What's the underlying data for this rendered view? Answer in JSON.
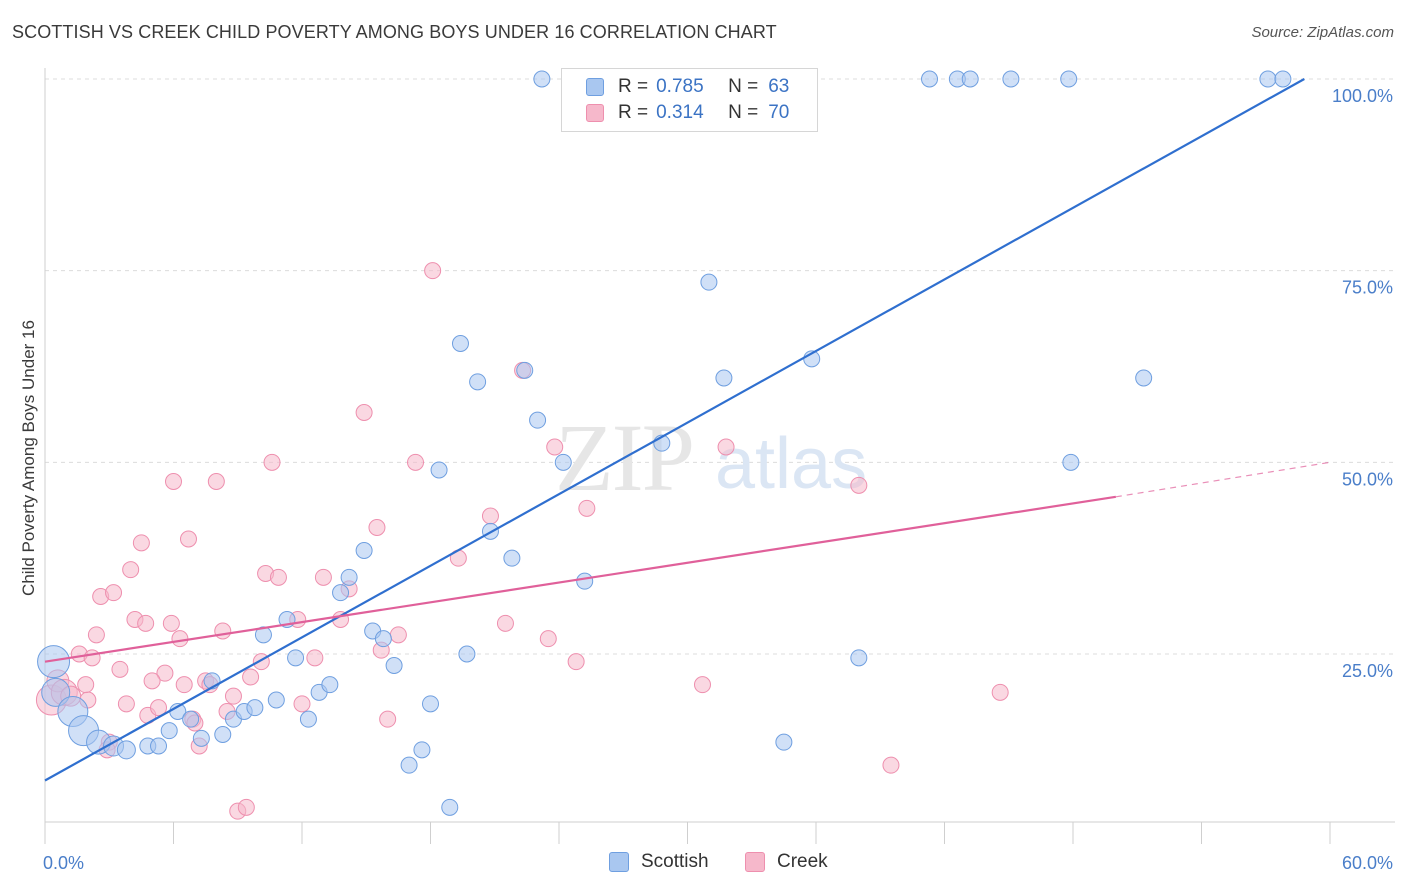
{
  "title": "SCOTTISH VS CREEK CHILD POVERTY AMONG BOYS UNDER 16 CORRELATION CHART",
  "source": "Source: ZipAtlas.com",
  "legend": {
    "rows": [
      {
        "r_label": "R =",
        "r_value": "0.785",
        "n_label": "N =",
        "n_value": "63"
      },
      {
        "r_label": "R =",
        "r_value": "0.314",
        "n_label": "N =",
        "n_value": "70"
      }
    ]
  },
  "bottom_legend": {
    "series1": "Scottish",
    "series2": "Creek"
  },
  "colors": {
    "scottish_fill": "#a9c7f0",
    "scottish_stroke": "#6f9fe0",
    "scottish_line": "#2f6fcf",
    "creek_fill": "#f6b8cb",
    "creek_stroke": "#ee8fae",
    "creek_line": "#e0609a",
    "accent_text": "#4a7ec9"
  },
  "chart_data": {
    "type": "scatter",
    "title": "SCOTTISH VS CREEK CHILD POVERTY AMONG BOYS UNDER 16 CORRELATION CHART",
    "xlabel": "",
    "ylabel": "Child Poverty Among Boys Under 16",
    "xlim": [
      0,
      60
    ],
    "ylim": [
      0,
      105
    ],
    "x_tick_labels": [
      "0.0%",
      "60.0%"
    ],
    "y_tick_labels": [
      "25.0%",
      "50.0%",
      "75.0%",
      "100.0%"
    ],
    "y_ticks": [
      25,
      50,
      75,
      100
    ],
    "grid": true,
    "legend_position": "top-center",
    "series": [
      {
        "name": "Scottish",
        "r": 0.785,
        "n": 63,
        "trend": {
          "x": [
            0,
            58.8
          ],
          "y": [
            8.5,
            100
          ]
        },
        "points": [
          {
            "x": 0.4,
            "y": 24,
            "s": 16
          },
          {
            "x": 0.5,
            "y": 20,
            "s": 14
          },
          {
            "x": 1.3,
            "y": 17.5,
            "s": 15
          },
          {
            "x": 1.8,
            "y": 15,
            "s": 15
          },
          {
            "x": 2.5,
            "y": 13.5,
            "s": 12
          },
          {
            "x": 3.2,
            "y": 13,
            "s": 10
          },
          {
            "x": 3.8,
            "y": 12.5,
            "s": 9
          },
          {
            "x": 4.8,
            "y": 13,
            "s": 8
          },
          {
            "x": 5.3,
            "y": 13,
            "s": 8
          },
          {
            "x": 5.8,
            "y": 15,
            "s": 8
          },
          {
            "x": 6.2,
            "y": 17.5,
            "s": 8
          },
          {
            "x": 6.8,
            "y": 16.5,
            "s": 8
          },
          {
            "x": 7.3,
            "y": 14,
            "s": 8
          },
          {
            "x": 7.8,
            "y": 21.5,
            "s": 8
          },
          {
            "x": 8.3,
            "y": 14.5,
            "s": 8
          },
          {
            "x": 8.8,
            "y": 16.5,
            "s": 8
          },
          {
            "x": 9.3,
            "y": 17.5,
            "s": 8
          },
          {
            "x": 9.8,
            "y": 18,
            "s": 8
          },
          {
            "x": 10.2,
            "y": 27.5,
            "s": 8
          },
          {
            "x": 10.8,
            "y": 19,
            "s": 8
          },
          {
            "x": 11.3,
            "y": 29.5,
            "s": 8
          },
          {
            "x": 11.7,
            "y": 24.5,
            "s": 8
          },
          {
            "x": 12.3,
            "y": 16.5,
            "s": 8
          },
          {
            "x": 12.8,
            "y": 20,
            "s": 8
          },
          {
            "x": 13.3,
            "y": 21,
            "s": 8
          },
          {
            "x": 13.8,
            "y": 33,
            "s": 8
          },
          {
            "x": 14.2,
            "y": 35,
            "s": 8
          },
          {
            "x": 14.9,
            "y": 38.5,
            "s": 8
          },
          {
            "x": 15.3,
            "y": 28,
            "s": 8
          },
          {
            "x": 15.8,
            "y": 27,
            "s": 8
          },
          {
            "x": 16.3,
            "y": 23.5,
            "s": 8
          },
          {
            "x": 17.0,
            "y": 10.5,
            "s": 8
          },
          {
            "x": 17.6,
            "y": 12.5,
            "s": 8
          },
          {
            "x": 18.0,
            "y": 18.5,
            "s": 8
          },
          {
            "x": 18.4,
            "y": 49,
            "s": 8
          },
          {
            "x": 18.9,
            "y": 5,
            "s": 8
          },
          {
            "x": 19.4,
            "y": 65.5,
            "s": 8
          },
          {
            "x": 19.7,
            "y": 25,
            "s": 8
          },
          {
            "x": 20.2,
            "y": 60.5,
            "s": 8
          },
          {
            "x": 20.8,
            "y": 41,
            "s": 8
          },
          {
            "x": 21.8,
            "y": 37.5,
            "s": 8
          },
          {
            "x": 22.4,
            "y": 62,
            "s": 8
          },
          {
            "x": 23.0,
            "y": 55.5,
            "s": 8
          },
          {
            "x": 23.2,
            "y": 100,
            "s": 8
          },
          {
            "x": 24.2,
            "y": 50,
            "s": 8
          },
          {
            "x": 25.2,
            "y": 34.5,
            "s": 8
          },
          {
            "x": 28.8,
            "y": 52.5,
            "s": 8
          },
          {
            "x": 31.0,
            "y": 73.5,
            "s": 8
          },
          {
            "x": 31.7,
            "y": 61,
            "s": 8
          },
          {
            "x": 34.5,
            "y": 13.5,
            "s": 8
          },
          {
            "x": 35.8,
            "y": 63.5,
            "s": 8
          },
          {
            "x": 38.0,
            "y": 24.5,
            "s": 8
          },
          {
            "x": 41.3,
            "y": 100,
            "s": 8
          },
          {
            "x": 42.6,
            "y": 100,
            "s": 8
          },
          {
            "x": 43.2,
            "y": 100,
            "s": 8
          },
          {
            "x": 45.1,
            "y": 100,
            "s": 8
          },
          {
            "x": 47.8,
            "y": 100,
            "s": 8
          },
          {
            "x": 47.9,
            "y": 50,
            "s": 8
          },
          {
            "x": 51.3,
            "y": 61,
            "s": 8
          },
          {
            "x": 57.1,
            "y": 100,
            "s": 8
          },
          {
            "x": 57.8,
            "y": 100,
            "s": 8
          },
          {
            "x": 25.5,
            "y": 100,
            "s": 8
          },
          {
            "x": 27.3,
            "y": 100,
            "s": 8
          }
        ]
      },
      {
        "name": "Creek",
        "r": 0.314,
        "n": 70,
        "trend": {
          "x": [
            0,
            50
          ],
          "y": [
            24,
            45.5
          ],
          "dashed_to": {
            "x": 60,
            "y": 50
          }
        },
        "points": [
          {
            "x": 0.3,
            "y": 19,
            "s": 15
          },
          {
            "x": 0.6,
            "y": 21.5,
            "s": 11
          },
          {
            "x": 0.9,
            "y": 20,
            "s": 13
          },
          {
            "x": 1.2,
            "y": 19.5,
            "s": 10
          },
          {
            "x": 1.6,
            "y": 25,
            "s": 8
          },
          {
            "x": 2.0,
            "y": 19,
            "s": 8
          },
          {
            "x": 2.2,
            "y": 24.5,
            "s": 8
          },
          {
            "x": 2.4,
            "y": 27.5,
            "s": 8
          },
          {
            "x": 2.6,
            "y": 32.5,
            "s": 8
          },
          {
            "x": 3.0,
            "y": 13.5,
            "s": 8
          },
          {
            "x": 3.2,
            "y": 33,
            "s": 8
          },
          {
            "x": 3.5,
            "y": 23,
            "s": 8
          },
          {
            "x": 3.8,
            "y": 18.5,
            "s": 8
          },
          {
            "x": 4.0,
            "y": 36,
            "s": 8
          },
          {
            "x": 4.2,
            "y": 29.5,
            "s": 8
          },
          {
            "x": 4.5,
            "y": 39.5,
            "s": 8
          },
          {
            "x": 4.7,
            "y": 29,
            "s": 8
          },
          {
            "x": 4.8,
            "y": 17,
            "s": 8
          },
          {
            "x": 5.3,
            "y": 18,
            "s": 8
          },
          {
            "x": 5.6,
            "y": 22.5,
            "s": 8
          },
          {
            "x": 5.9,
            "y": 29,
            "s": 8
          },
          {
            "x": 6.0,
            "y": 47.5,
            "s": 8
          },
          {
            "x": 6.3,
            "y": 27,
            "s": 8
          },
          {
            "x": 6.5,
            "y": 21,
            "s": 8
          },
          {
            "x": 6.7,
            "y": 40,
            "s": 8
          },
          {
            "x": 6.9,
            "y": 16.5,
            "s": 8
          },
          {
            "x": 7.2,
            "y": 13,
            "s": 8
          },
          {
            "x": 7.5,
            "y": 21.5,
            "s": 8
          },
          {
            "x": 7.7,
            "y": 21,
            "s": 8
          },
          {
            "x": 8.0,
            "y": 47.5,
            "s": 8
          },
          {
            "x": 8.3,
            "y": 28,
            "s": 8
          },
          {
            "x": 8.5,
            "y": 17.5,
            "s": 8
          },
          {
            "x": 9.0,
            "y": 4.5,
            "s": 8
          },
          {
            "x": 9.4,
            "y": 5,
            "s": 8
          },
          {
            "x": 10.1,
            "y": 24,
            "s": 8
          },
          {
            "x": 10.3,
            "y": 35.5,
            "s": 8
          },
          {
            "x": 10.6,
            "y": 50,
            "s": 8
          },
          {
            "x": 10.9,
            "y": 35,
            "s": 8
          },
          {
            "x": 11.8,
            "y": 29.5,
            "s": 8
          },
          {
            "x": 12.6,
            "y": 24.5,
            "s": 8
          },
          {
            "x": 13.0,
            "y": 35,
            "s": 8
          },
          {
            "x": 13.8,
            "y": 29.5,
            "s": 8
          },
          {
            "x": 14.2,
            "y": 33.5,
            "s": 8
          },
          {
            "x": 14.9,
            "y": 56.5,
            "s": 8
          },
          {
            "x": 15.5,
            "y": 41.5,
            "s": 8
          },
          {
            "x": 15.7,
            "y": 25.5,
            "s": 8
          },
          {
            "x": 16.0,
            "y": 16.5,
            "s": 8
          },
          {
            "x": 16.5,
            "y": 27.5,
            "s": 8
          },
          {
            "x": 17.3,
            "y": 50,
            "s": 8
          },
          {
            "x": 18.1,
            "y": 75,
            "s": 8
          },
          {
            "x": 19.3,
            "y": 37.5,
            "s": 8
          },
          {
            "x": 20.8,
            "y": 43,
            "s": 8
          },
          {
            "x": 21.5,
            "y": 29,
            "s": 8
          },
          {
            "x": 22.3,
            "y": 62,
            "s": 8
          },
          {
            "x": 23.5,
            "y": 27,
            "s": 8
          },
          {
            "x": 23.8,
            "y": 52,
            "s": 8
          },
          {
            "x": 24.8,
            "y": 24,
            "s": 8
          },
          {
            "x": 25.3,
            "y": 44,
            "s": 8
          },
          {
            "x": 30.7,
            "y": 21,
            "s": 8
          },
          {
            "x": 31.8,
            "y": 52,
            "s": 8
          },
          {
            "x": 38.0,
            "y": 47,
            "s": 8
          },
          {
            "x": 39.5,
            "y": 10.5,
            "s": 8
          },
          {
            "x": 44.6,
            "y": 20,
            "s": 8
          },
          {
            "x": 1.9,
            "y": 21,
            "s": 8
          },
          {
            "x": 2.9,
            "y": 12.5,
            "s": 8
          },
          {
            "x": 5.0,
            "y": 21.5,
            "s": 8
          },
          {
            "x": 7.0,
            "y": 16,
            "s": 8
          },
          {
            "x": 8.8,
            "y": 19.5,
            "s": 8
          },
          {
            "x": 9.6,
            "y": 22,
            "s": 8
          },
          {
            "x": 12.0,
            "y": 18.5,
            "s": 8
          }
        ]
      }
    ]
  }
}
